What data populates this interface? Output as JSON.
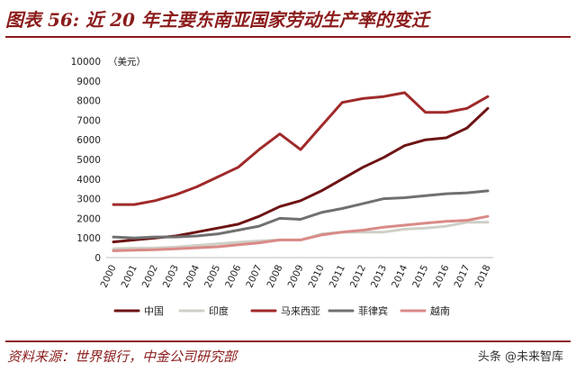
{
  "header": {
    "title": "图表 56: 近 20 年主要东南亚国家劳动生产率的变迁"
  },
  "footer": {
    "source": "资料来源：世界银行，中金公司研究部",
    "watermark": "头条 @未来智库"
  },
  "chart_data": {
    "type": "line",
    "title": "图表 56: 近 20 年主要东南亚国家劳动生产率的变迁",
    "unit_label": "（美元）",
    "xlabel": "",
    "ylabel": "（美元）",
    "categories": [
      "2000",
      "2001",
      "2002",
      "2003",
      "2004",
      "2005",
      "2006",
      "2007",
      "2008",
      "2009",
      "2010",
      "2011",
      "2012",
      "2013",
      "2014",
      "2015",
      "2016",
      "2017",
      "2018"
    ],
    "yticks": [
      0,
      1000,
      2000,
      3000,
      4000,
      5000,
      6000,
      7000,
      8000,
      9000,
      10000
    ],
    "ylim": [
      0,
      10000
    ],
    "grid": false,
    "legend_position": "bottom",
    "series": [
      {
        "name": "中国",
        "color": "#6e1414",
        "values": [
          800,
          900,
          1000,
          1100,
          1300,
          1500,
          1700,
          2100,
          2600,
          2900,
          3400,
          4000,
          4600,
          5100,
          5700,
          6000,
          6100,
          6600,
          7600
        ]
      },
      {
        "name": "印度",
        "color": "#cfcfc7",
        "values": [
          450,
          480,
          490,
          540,
          620,
          700,
          780,
          850,
          900,
          900,
          1200,
          1300,
          1300,
          1300,
          1450,
          1500,
          1600,
          1800,
          1800
        ]
      },
      {
        "name": "马来西亚",
        "color": "#a02a2a",
        "values": [
          2700,
          2700,
          2900,
          3200,
          3600,
          4100,
          4600,
          5500,
          6300,
          5500,
          6700,
          7900,
          8100,
          8200,
          8400,
          7400,
          7400,
          7600,
          8200
        ]
      },
      {
        "name": "菲律宾",
        "color": "#707070",
        "values": [
          1050,
          1000,
          1050,
          1050,
          1100,
          1200,
          1400,
          1600,
          2000,
          1950,
          2300,
          2500,
          2750,
          3000,
          3050,
          3150,
          3250,
          3300,
          3400
        ]
      },
      {
        "name": "越南",
        "color": "#d98a87",
        "values": [
          350,
          380,
          400,
          450,
          500,
          550,
          650,
          750,
          900,
          900,
          1150,
          1300,
          1400,
          1550,
          1650,
          1750,
          1850,
          1900,
          2100
        ]
      }
    ]
  }
}
